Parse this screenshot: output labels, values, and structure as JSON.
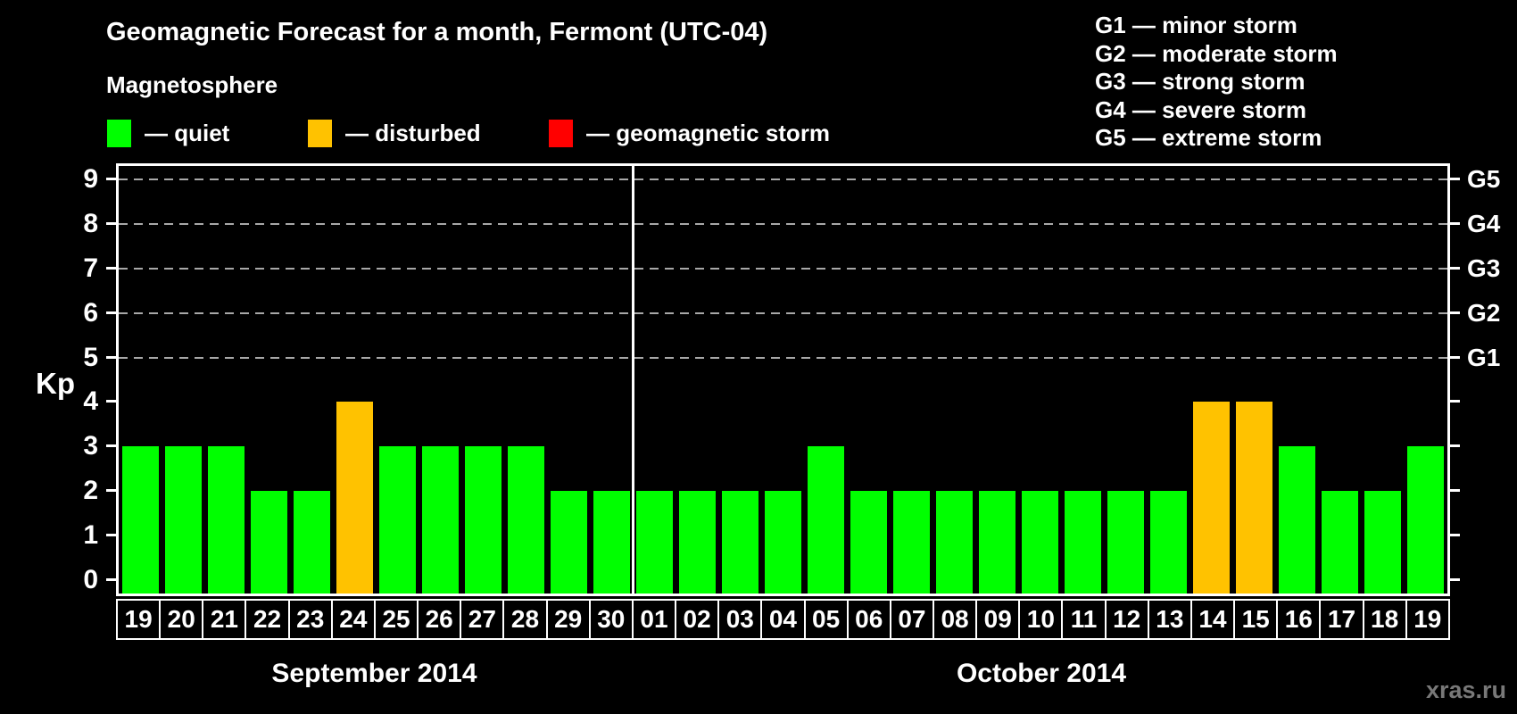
{
  "header": {
    "title": "Geomagnetic Forecast for a month, Fermont (UTC-04)",
    "subtitle": "Magnetosphere"
  },
  "legend": {
    "items": [
      {
        "key": "quiet",
        "label": "— quiet",
        "color": "#00ff00"
      },
      {
        "key": "disturbed",
        "label": "— disturbed",
        "color": "#ffc200"
      },
      {
        "key": "storm",
        "label": "— geomagnetic storm",
        "color": "#ff0000"
      }
    ]
  },
  "g_legend": [
    "G1 — minor storm",
    "G2 — moderate storm",
    "G3 — strong storm",
    "G4 — severe storm",
    "G5 — extreme storm"
  ],
  "watermark": "xras.ru",
  "chart_data": {
    "type": "bar",
    "title": "Geomagnetic Forecast for a month, Fermont (UTC-04)",
    "ylabel": "Kp",
    "ylim": [
      0,
      9.4
    ],
    "yticks": [
      0,
      1,
      2,
      3,
      4,
      5,
      6,
      7,
      8,
      9
    ],
    "grid": "horizontal dashed at Kp 5–9",
    "legend_position": "top",
    "right_axis": [
      {
        "kp": 5,
        "label": "G1"
      },
      {
        "kp": 6,
        "label": "G2"
      },
      {
        "kp": 7,
        "label": "G3"
      },
      {
        "kp": 8,
        "label": "G4"
      },
      {
        "kp": 9,
        "label": "G5"
      }
    ],
    "status_colors": {
      "quiet": "#00ff00",
      "disturbed": "#ffc200",
      "storm": "#ff0000"
    },
    "months": [
      {
        "label": "September 2014",
        "start_index": 0,
        "count": 12
      },
      {
        "label": "October 2014",
        "start_index": 12,
        "count": 19
      }
    ],
    "categories": [
      "19",
      "20",
      "21",
      "22",
      "23",
      "24",
      "25",
      "26",
      "27",
      "28",
      "29",
      "30",
      "01",
      "02",
      "03",
      "04",
      "05",
      "06",
      "07",
      "08",
      "09",
      "10",
      "11",
      "12",
      "13",
      "14",
      "15",
      "16",
      "17",
      "18",
      "19"
    ],
    "values": [
      3,
      3,
      3,
      2,
      2,
      4,
      3,
      3,
      3,
      3,
      2,
      2,
      2,
      2,
      2,
      2,
      3,
      2,
      2,
      2,
      2,
      2,
      2,
      2,
      2,
      4,
      4,
      3,
      2,
      2,
      3
    ],
    "statuses": [
      "quiet",
      "quiet",
      "quiet",
      "quiet",
      "quiet",
      "disturbed",
      "quiet",
      "quiet",
      "quiet",
      "quiet",
      "quiet",
      "quiet",
      "quiet",
      "quiet",
      "quiet",
      "quiet",
      "quiet",
      "quiet",
      "quiet",
      "quiet",
      "quiet",
      "quiet",
      "quiet",
      "quiet",
      "quiet",
      "disturbed",
      "disturbed",
      "quiet",
      "quiet",
      "quiet",
      "quiet"
    ]
  }
}
